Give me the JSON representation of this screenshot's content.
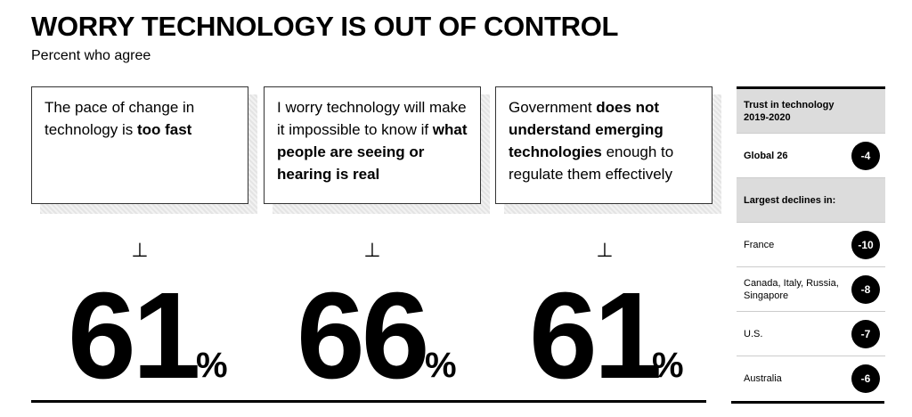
{
  "title": "WORRY TECHNOLOGY IS OUT OF CONTROL",
  "subtitle": "Percent who agree",
  "cards": [
    {
      "pre": "The pace of change in technology is ",
      "bold": "too fast",
      "post": "",
      "value": "61",
      "unit": "%"
    },
    {
      "pre": "I worry technology will make it impossible to know if ",
      "bold": "what people are seeing or hearing is real",
      "post": "",
      "value": "66",
      "unit": "%"
    },
    {
      "pre": "Government ",
      "bold": "does not understand emerging technologies",
      "post": " enough to regulate them effectively",
      "value": "61",
      "unit": "%"
    }
  ],
  "perp_symbol": "⊥",
  "sidebar": {
    "header": "Trust in technology 2019-2020",
    "global": {
      "label": "Global 26",
      "value": "-4"
    },
    "declines_header": "Largest declines in:",
    "rows": [
      {
        "label": "France",
        "value": "-10"
      },
      {
        "label": "Canada, Italy, Russia, Singapore",
        "value": "-8"
      },
      {
        "label": "U.S.",
        "value": "-7"
      },
      {
        "label": "Australia",
        "value": "-6"
      }
    ]
  }
}
